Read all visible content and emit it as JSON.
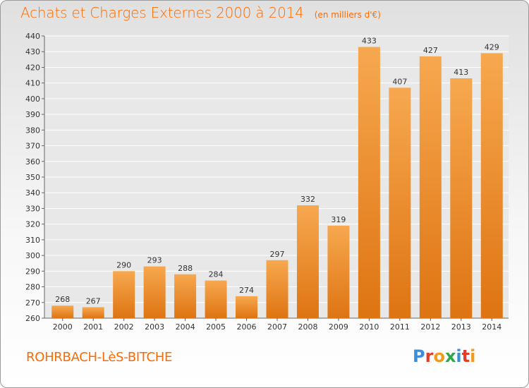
{
  "title": "Achats et Charges Externes 2000 à 2014",
  "subtitle": "(en milliers d'€)",
  "location": "ROHRBACH-LèS-BITCHE",
  "logo": {
    "letters": [
      "P",
      "r",
      "o",
      "x",
      "i",
      "t",
      "i"
    ],
    "colors": [
      "#3a8fd6",
      "#e53b2c",
      "#f29a1e",
      "#2ea64a",
      "#3a8fd6",
      "#e53b2c",
      "#f29a1e"
    ]
  },
  "colors": {
    "bar_light": "#f7a84f",
    "bar_dark": "#de7412",
    "accent": "#ff6a00"
  },
  "chart_data": {
    "type": "bar",
    "categories": [
      "2000",
      "2001",
      "2002",
      "2003",
      "2004",
      "2005",
      "2006",
      "2007",
      "2008",
      "2009",
      "2010",
      "2011",
      "2012",
      "2013",
      "2014"
    ],
    "values": [
      268,
      267,
      290,
      293,
      288,
      284,
      274,
      297,
      332,
      319,
      433,
      407,
      427,
      413,
      429
    ],
    "title": "Achats et Charges Externes 2000 à 2014",
    "subtitle": "(en milliers d'€)",
    "ylim": [
      260,
      440
    ],
    "yticks": [
      260,
      270,
      280,
      290,
      300,
      310,
      320,
      330,
      340,
      350,
      360,
      370,
      380,
      390,
      400,
      410,
      420,
      430,
      440
    ],
    "grid": true
  }
}
